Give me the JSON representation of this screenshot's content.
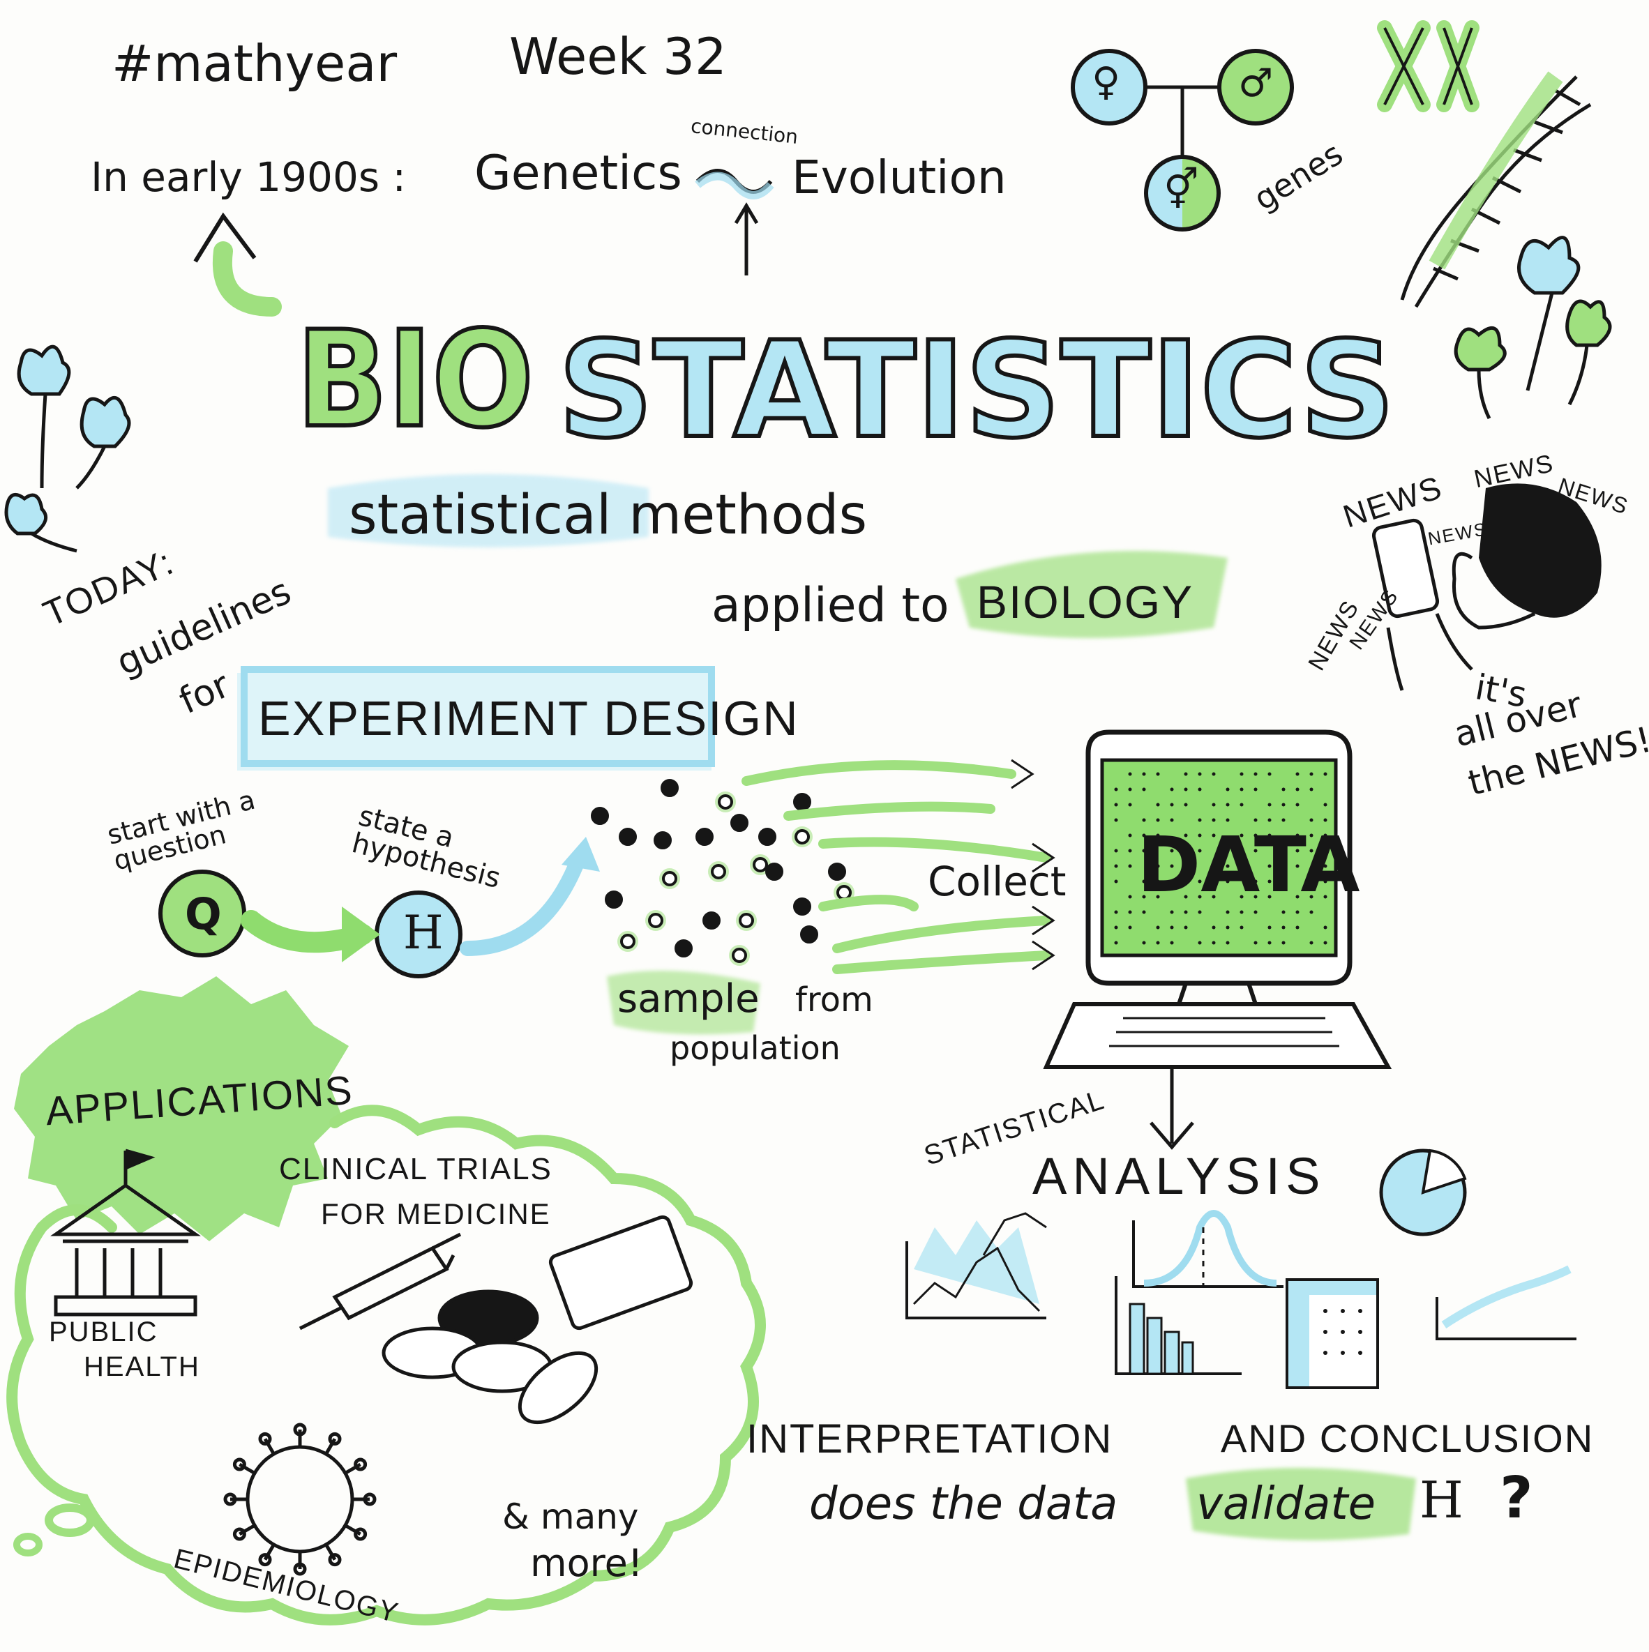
{
  "header": {
    "hashtag": "#mathyear",
    "week": "Week 32"
  },
  "intro": {
    "prefix": "In early 1900s :",
    "left": "Genetics",
    "link": "connection",
    "right": "Evolution"
  },
  "genes": {
    "female_symbol": "♀",
    "male_symbol": "♂",
    "child_symbol": "⚥",
    "label": "genes",
    "chromosomes": "XX"
  },
  "title": {
    "part1": "BIO",
    "part2": "STATISTICS"
  },
  "definition": {
    "line1": "statistical methods",
    "line2": "applied to",
    "highlight": "BIOLOGY"
  },
  "news": {
    "word": "NEWS",
    "caption_1": "it's",
    "caption_2": "all over",
    "caption_3": "the NEWS!"
  },
  "today": {
    "line1": "TODAY:",
    "line2": "guidelines",
    "line3": "for"
  },
  "design_box": "EXPERIMENT DESIGN",
  "steps": {
    "q_label": "start with a question",
    "q_symbol": "Q",
    "h_label": "state a hypothesis",
    "h_symbol": "H",
    "sample_1": "sample",
    "sample_2": "from",
    "sample_3": "population",
    "collect": "Collect"
  },
  "computer": {
    "screen_text": "DATA"
  },
  "analysis": {
    "line1": "STATISTICAL",
    "line2": "ANALYSIS"
  },
  "conclusion": {
    "line1a": "INTERPRETATION",
    "line1b": "AND CONCLUSION",
    "line2a": "does the data",
    "highlight": "validate",
    "symbol": "H",
    "mark": "?"
  },
  "applications": {
    "title": "APPLICATIONS",
    "public_health_1": "PUBLIC",
    "public_health_2": "HEALTH",
    "clinical_1": "CLINICAL TRIALS",
    "clinical_2": "FOR MEDICINE",
    "epidemiology": "EPIDEMIOLOGY",
    "more_1": "& many",
    "more_2": "more!"
  },
  "colors": {
    "green": "#8fdc6e",
    "blue": "#9fdcef",
    "ink": "#161616"
  }
}
